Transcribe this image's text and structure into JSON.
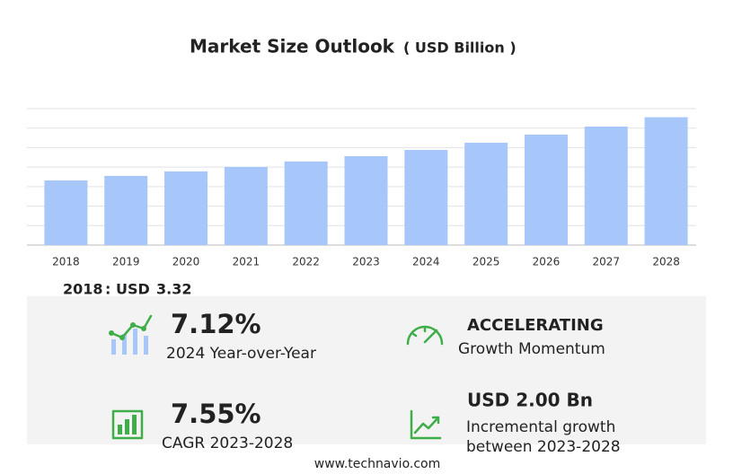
{
  "chart_data": {
    "type": "bar",
    "title": "Market Size Outlook",
    "unit": "( USD Billion )",
    "categories": [
      "2018",
      "2019",
      "2020",
      "2021",
      "2022",
      "2023",
      "2024",
      "2025",
      "2026",
      "2027",
      "2028"
    ],
    "values": [
      3.32,
      3.55,
      3.78,
      4.01,
      4.29,
      4.56,
      4.88,
      5.25,
      5.67,
      6.08,
      6.56
    ],
    "color": "#a7c7fb",
    "ylim": [
      0,
      7
    ],
    "yticks": [
      0,
      1,
      2,
      3,
      4,
      5,
      6,
      7
    ],
    "grid": true
  },
  "base": {
    "separator": ":",
    "currency": "USD"
  },
  "stats": [
    {
      "value": "7.12%",
      "label": "2024 Year-over-Year"
    },
    {
      "value": "ACCELERATING",
      "label": "Growth Momentum"
    },
    {
      "value": "7.55%",
      "label": "CAGR 2023-2028"
    },
    {
      "value": "USD 2.00 Bn",
      "label": "Incremental growth",
      "label2": "between 2023-2028"
    }
  ],
  "footer": "www.technavio.com"
}
